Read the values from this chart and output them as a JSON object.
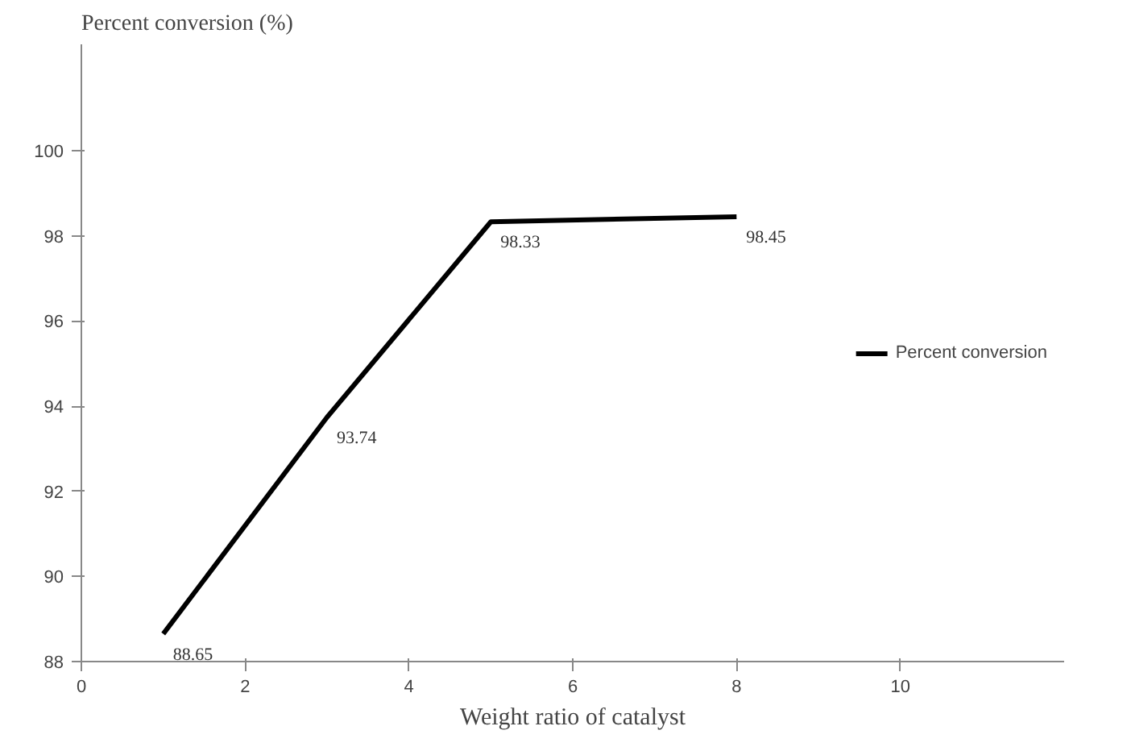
{
  "chart_data": {
    "type": "line",
    "xlabel": "Weight ratio of catalyst",
    "ylabel": "Percent conversion (%)",
    "x": [
      1,
      3,
      5,
      8
    ],
    "series": [
      {
        "name": "Percent conversion",
        "color": "#000000",
        "values": [
          88.65,
          93.74,
          98.33,
          98.45
        ]
      }
    ],
    "xlim": [
      0,
      12
    ],
    "ylim": [
      88,
      102.5
    ],
    "xticks": [
      0,
      2,
      4,
      6,
      8,
      10
    ],
    "yticks": [
      88,
      90,
      92,
      94,
      96,
      98,
      100
    ],
    "data_labels": true,
    "legend": "right",
    "grid": false,
    "marker": "none",
    "line_style": "solid"
  }
}
